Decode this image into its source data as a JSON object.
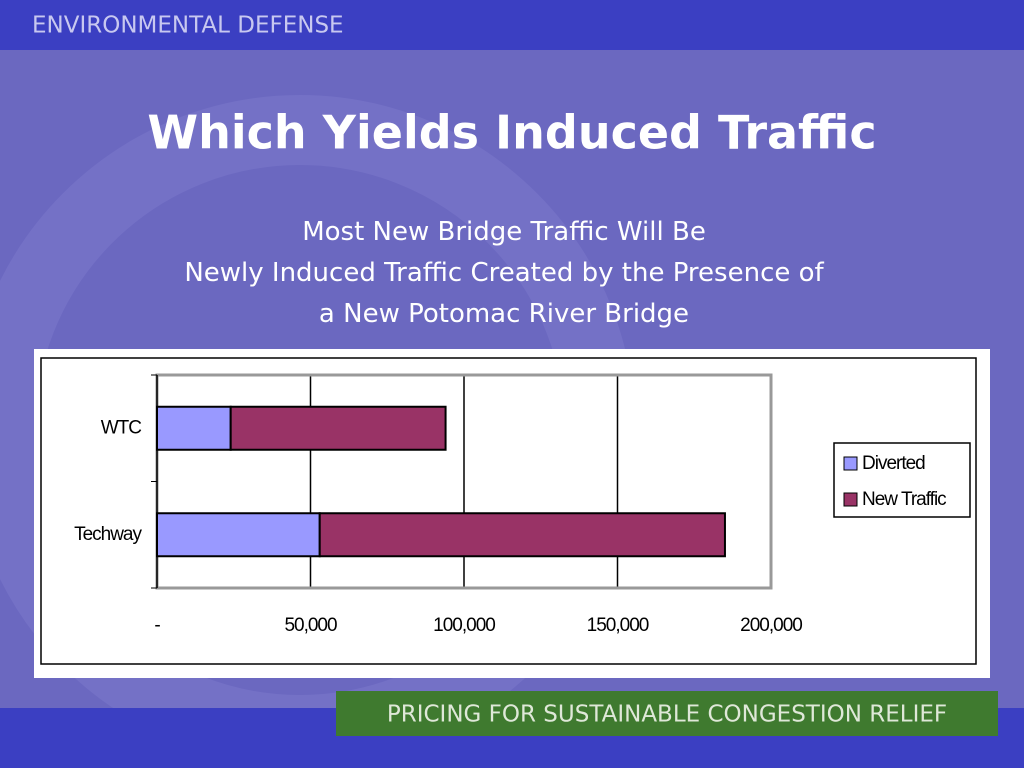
{
  "header": "ENVIRONMENTAL DEFENSE",
  "footer": "PRICING FOR SUSTAINABLE CONGESTION RELIEF",
  "chart_data": {
    "type": "stacked-barh",
    "title": "Which Yields Induced Traffic",
    "subtitle": "Most New Bridge Traffic Will Be Newly Induced Traffic Created by the Presence of a New Potomac River Bridge",
    "categories": [
      "WTC",
      "Techway"
    ],
    "series": [
      {
        "name": "Diverted",
        "color": "#9999ff",
        "values": [
          24000,
          53000
        ]
      },
      {
        "name": "New Traffic",
        "color": "#993366",
        "values": [
          70000,
          132000
        ]
      }
    ],
    "xlim": [
      0,
      200000
    ],
    "xticks": [
      {
        "value": 0,
        "label": "-"
      },
      {
        "value": 50000,
        "label": "50,000"
      },
      {
        "value": 100000,
        "label": "100,000"
      },
      {
        "value": 150000,
        "label": "150,000"
      },
      {
        "value": 200000,
        "label": "200,000"
      }
    ],
    "grid": true,
    "legend": "right"
  }
}
